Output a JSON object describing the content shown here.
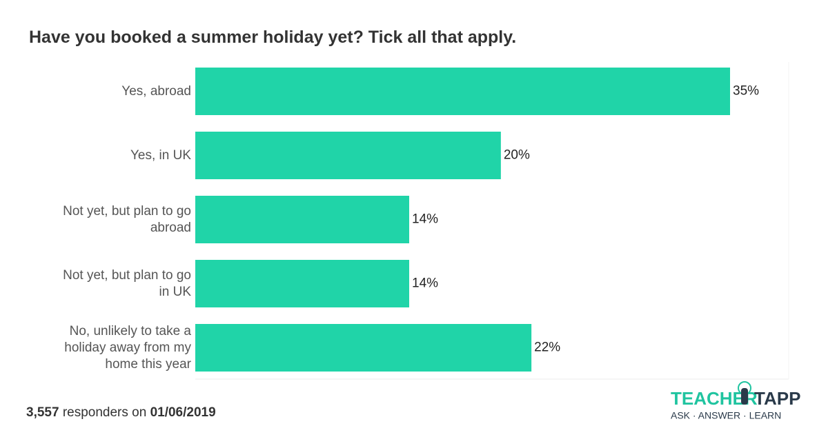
{
  "chart_data": {
    "type": "bar",
    "orientation": "horizontal",
    "title": "Have you booked a summer holiday yet? Tick all that apply.",
    "categories": [
      "Yes, abroad",
      "Yes, in UK",
      "Not yet, but plan to go abroad",
      "Not yet, but plan to go in UK",
      "No, unlikely to take a holiday away from my home this year"
    ],
    "values": [
      35,
      20,
      14,
      14,
      22
    ],
    "value_labels": [
      "35%",
      "20%",
      "14%",
      "14%",
      "22%"
    ],
    "color": "#20d4a8"
  },
  "footer": {
    "count": "3,557",
    "text": "responders on",
    "date": "01/06/2019"
  },
  "logo": {
    "left": "TEACHER",
    "right": "TAPP",
    "tagline": "ASK · ANSWER · LEARN"
  }
}
